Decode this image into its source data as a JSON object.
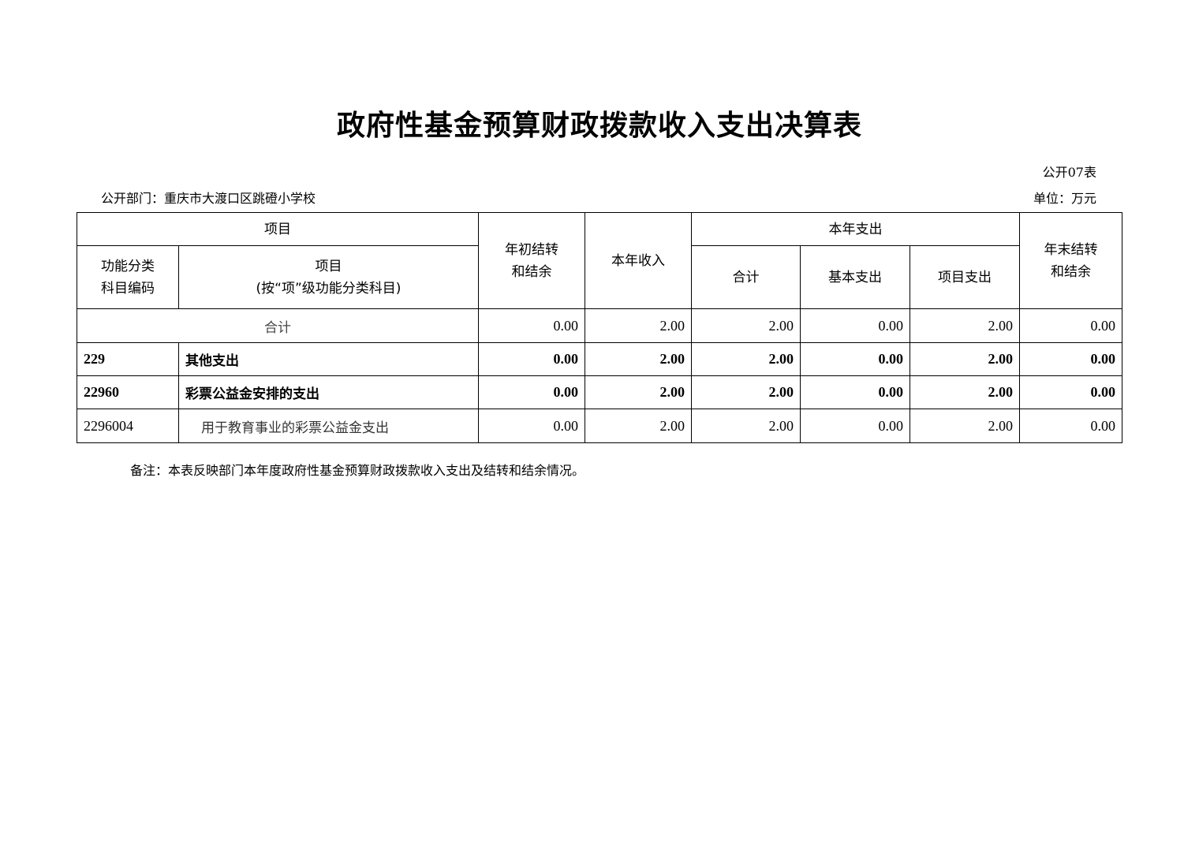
{
  "title": "政府性基金预算财政拨款收入支出决算表",
  "table_no": "公开07表",
  "department": "公开部门：重庆市大渡口区跳磴小学校",
  "unit": "单位：万元",
  "headers": {
    "item": "项目",
    "code": "功能分类科目编码",
    "code_l1": "功能分类",
    "code_l2": "科目编码",
    "name_l1": "项目",
    "name_l2": "(按“项”级功能分类科目)",
    "begin_l1": "年初结转",
    "begin_l2": "和结余",
    "income": "本年收入",
    "expense": "本年支出",
    "total": "合计",
    "basic": "基本支出",
    "project": "项目支出",
    "end_l1": "年末结转",
    "end_l2": "和结余"
  },
  "total_row": {
    "label": "合计",
    "values": [
      "0.00",
      "2.00",
      "2.00",
      "0.00",
      "2.00",
      "0.00"
    ]
  },
  "rows": [
    {
      "code": "229",
      "name": "其他支出",
      "bold": true,
      "values": [
        "0.00",
        "2.00",
        "2.00",
        "0.00",
        "2.00",
        "0.00"
      ]
    },
    {
      "code": "22960",
      "name": "彩票公益金安排的支出",
      "bold": true,
      "values": [
        "0.00",
        "2.00",
        "2.00",
        "0.00",
        "2.00",
        "0.00"
      ]
    },
    {
      "code": "2296004",
      "name": "用于教育事业的彩票公益金支出",
      "bold": false,
      "values": [
        "0.00",
        "2.00",
        "2.00",
        "0.00",
        "2.00",
        "0.00"
      ]
    }
  ],
  "note": "备注：本表反映部门本年度政府性基金预算财政拨款收入支出及结转和结余情况。"
}
